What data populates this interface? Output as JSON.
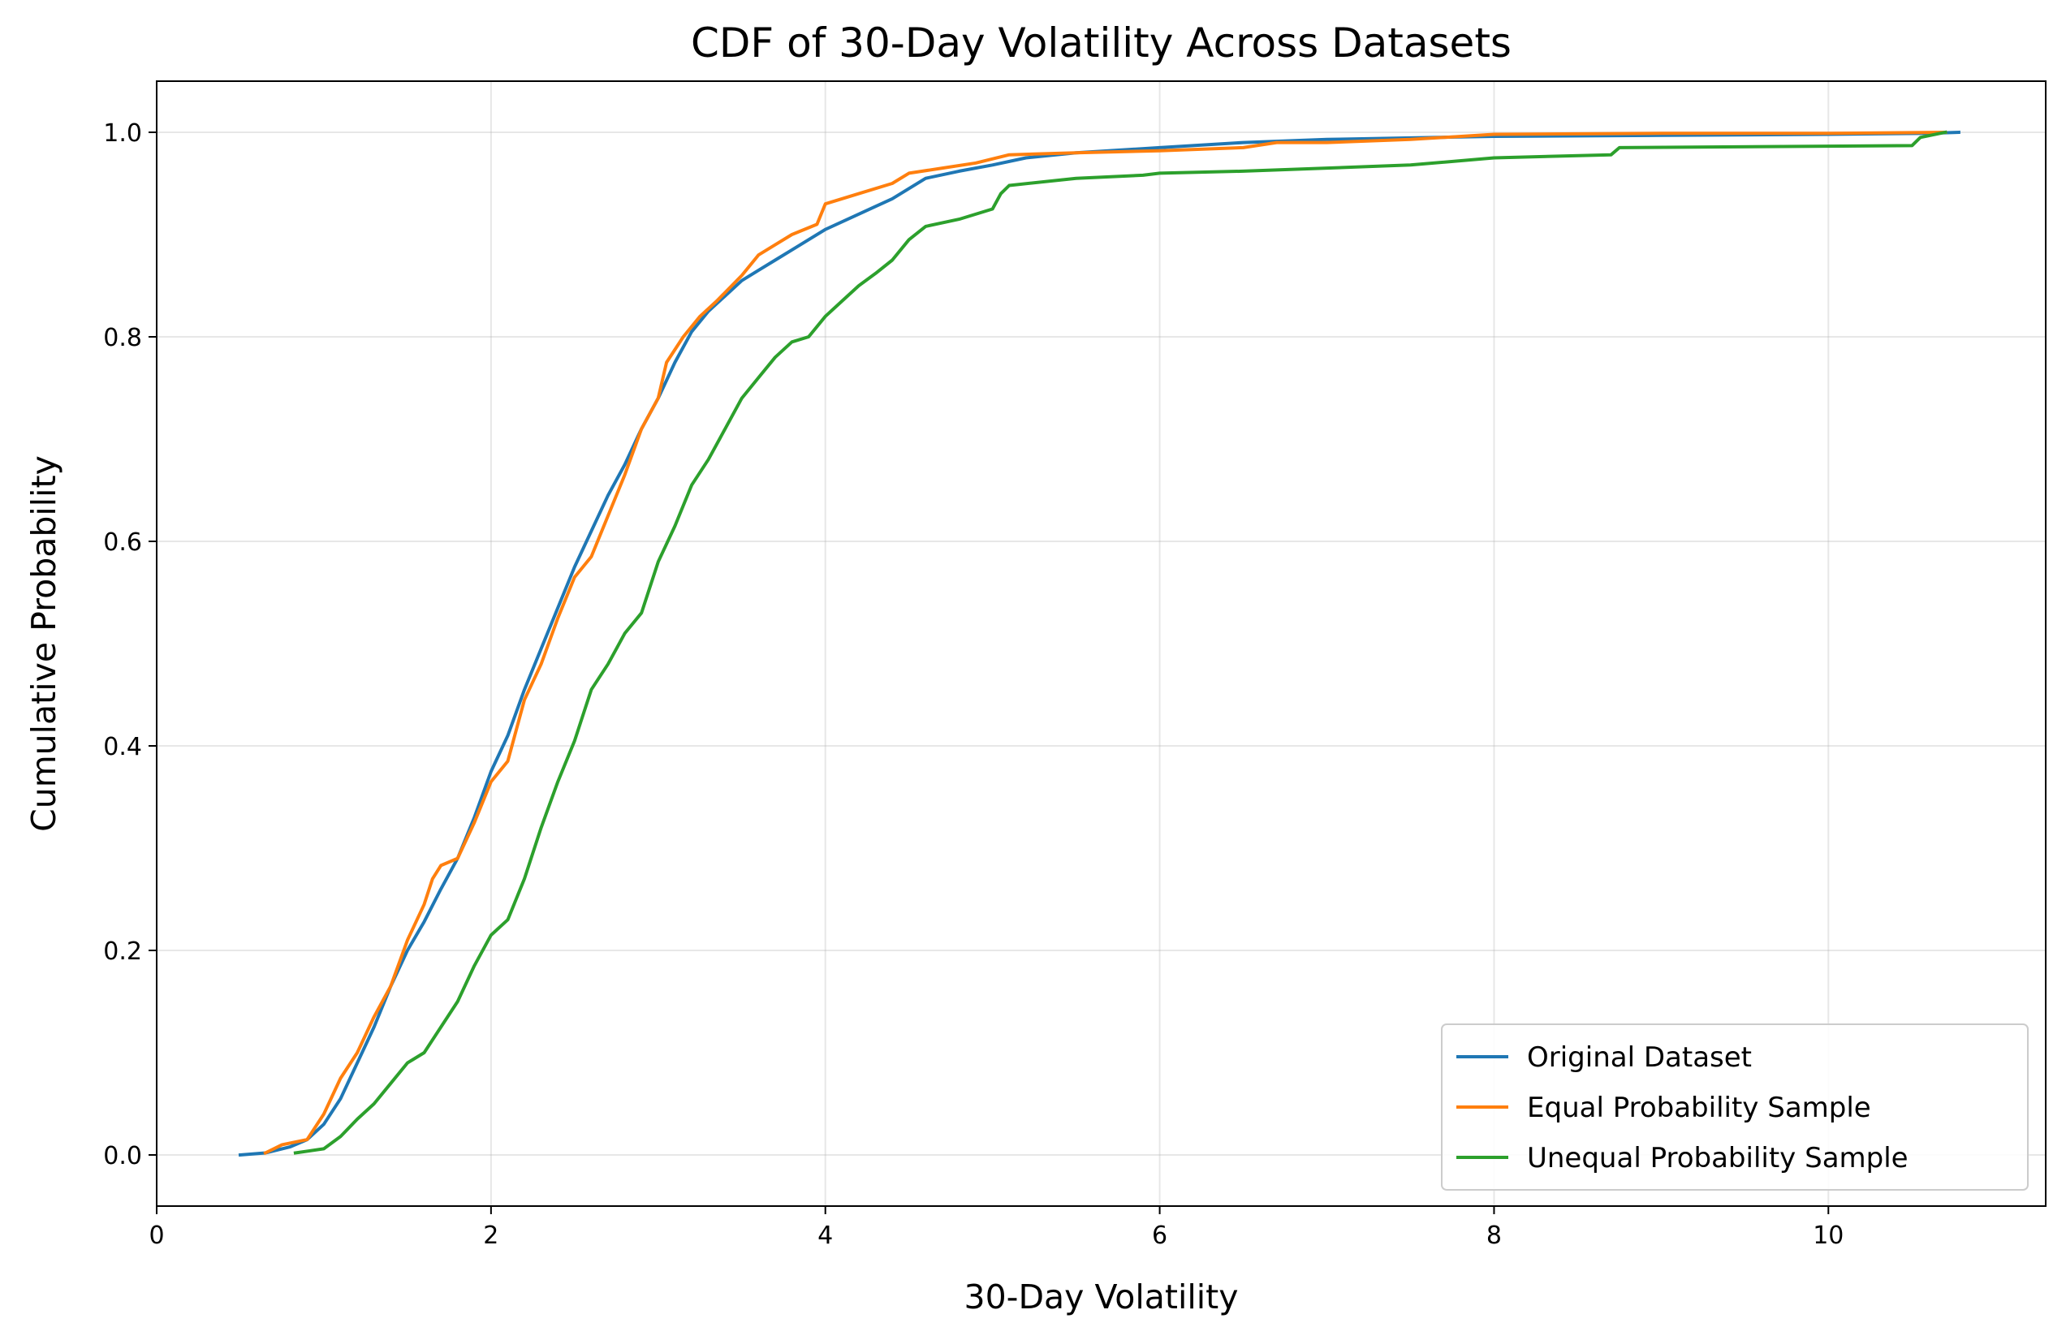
{
  "chart_data": {
    "type": "line",
    "title": "CDF of 30-Day Volatility Across Datasets",
    "xlabel": "30-Day Volatility",
    "ylabel": "Cumulative Probability",
    "xlim": [
      0,
      11.3
    ],
    "ylim": [
      -0.05,
      1.05
    ],
    "xticks": [
      0,
      2,
      4,
      6,
      8,
      10
    ],
    "yticks": [
      0.0,
      0.2,
      0.4,
      0.6,
      0.8,
      1.0
    ],
    "xtick_labels": [
      "0",
      "2",
      "4",
      "6",
      "8",
      "10"
    ],
    "ytick_labels": [
      "0.0",
      "0.2",
      "0.4",
      "0.6",
      "0.8",
      "1.0"
    ],
    "grid": true,
    "legend_position": "lower-right",
    "series": [
      {
        "name": "Original Dataset",
        "color": "#1f77b4",
        "points": [
          [
            0.5,
            0.0
          ],
          [
            0.65,
            0.002
          ],
          [
            0.8,
            0.008
          ],
          [
            0.9,
            0.015
          ],
          [
            1.0,
            0.03
          ],
          [
            1.1,
            0.055
          ],
          [
            1.2,
            0.09
          ],
          [
            1.3,
            0.125
          ],
          [
            1.4,
            0.165
          ],
          [
            1.5,
            0.2
          ],
          [
            1.6,
            0.228
          ],
          [
            1.7,
            0.26
          ],
          [
            1.8,
            0.29
          ],
          [
            1.9,
            0.33
          ],
          [
            2.0,
            0.375
          ],
          [
            2.1,
            0.41
          ],
          [
            2.2,
            0.455
          ],
          [
            2.3,
            0.495
          ],
          [
            2.4,
            0.535
          ],
          [
            2.5,
            0.575
          ],
          [
            2.6,
            0.61
          ],
          [
            2.7,
            0.645
          ],
          [
            2.8,
            0.675
          ],
          [
            2.9,
            0.71
          ],
          [
            3.0,
            0.74
          ],
          [
            3.1,
            0.775
          ],
          [
            3.2,
            0.805
          ],
          [
            3.3,
            0.825
          ],
          [
            3.4,
            0.84
          ],
          [
            3.5,
            0.855
          ],
          [
            3.6,
            0.865
          ],
          [
            3.7,
            0.875
          ],
          [
            3.8,
            0.885
          ],
          [
            3.9,
            0.895
          ],
          [
            4.0,
            0.905
          ],
          [
            4.2,
            0.92
          ],
          [
            4.4,
            0.935
          ],
          [
            4.6,
            0.955
          ],
          [
            4.8,
            0.962
          ],
          [
            5.0,
            0.968
          ],
          [
            5.2,
            0.975
          ],
          [
            5.5,
            0.98
          ],
          [
            6.0,
            0.985
          ],
          [
            6.5,
            0.99
          ],
          [
            7.0,
            0.993
          ],
          [
            8.0,
            0.996
          ],
          [
            9.0,
            0.997
          ],
          [
            10.0,
            0.998
          ],
          [
            10.6,
            0.999
          ],
          [
            10.78,
            1.0
          ]
        ]
      },
      {
        "name": "Equal Probability Sample",
        "color": "#ff7f0e",
        "points": [
          [
            0.65,
            0.002
          ],
          [
            0.75,
            0.01
          ],
          [
            0.9,
            0.015
          ],
          [
            1.0,
            0.04
          ],
          [
            1.1,
            0.075
          ],
          [
            1.2,
            0.1
          ],
          [
            1.3,
            0.135
          ],
          [
            1.4,
            0.165
          ],
          [
            1.5,
            0.21
          ],
          [
            1.6,
            0.245
          ],
          [
            1.65,
            0.27
          ],
          [
            1.7,
            0.283
          ],
          [
            1.8,
            0.29
          ],
          [
            1.9,
            0.325
          ],
          [
            2.0,
            0.365
          ],
          [
            2.1,
            0.385
          ],
          [
            2.2,
            0.445
          ],
          [
            2.3,
            0.48
          ],
          [
            2.4,
            0.525
          ],
          [
            2.5,
            0.565
          ],
          [
            2.6,
            0.585
          ],
          [
            2.7,
            0.625
          ],
          [
            2.8,
            0.665
          ],
          [
            2.9,
            0.71
          ],
          [
            3.0,
            0.74
          ],
          [
            3.05,
            0.775
          ],
          [
            3.15,
            0.8
          ],
          [
            3.25,
            0.82
          ],
          [
            3.35,
            0.835
          ],
          [
            3.5,
            0.86
          ],
          [
            3.6,
            0.88
          ],
          [
            3.7,
            0.89
          ],
          [
            3.8,
            0.9
          ],
          [
            3.95,
            0.91
          ],
          [
            4.0,
            0.93
          ],
          [
            4.2,
            0.94
          ],
          [
            4.4,
            0.95
          ],
          [
            4.5,
            0.96
          ],
          [
            4.7,
            0.965
          ],
          [
            4.9,
            0.97
          ],
          [
            5.1,
            0.978
          ],
          [
            5.5,
            0.98
          ],
          [
            6.0,
            0.982
          ],
          [
            6.5,
            0.985
          ],
          [
            6.7,
            0.99
          ],
          [
            7.0,
            0.99
          ],
          [
            7.5,
            0.993
          ],
          [
            8.0,
            0.998
          ],
          [
            9.0,
            0.999
          ],
          [
            10.0,
            0.999
          ],
          [
            10.7,
            1.0
          ]
        ]
      },
      {
        "name": "Unequal Probability Sample",
        "color": "#2ca02c",
        "points": [
          [
            0.83,
            0.002
          ],
          [
            1.0,
            0.006
          ],
          [
            1.1,
            0.018
          ],
          [
            1.2,
            0.035
          ],
          [
            1.3,
            0.05
          ],
          [
            1.4,
            0.07
          ],
          [
            1.5,
            0.09
          ],
          [
            1.6,
            0.1
          ],
          [
            1.7,
            0.125
          ],
          [
            1.8,
            0.15
          ],
          [
            1.9,
            0.185
          ],
          [
            2.0,
            0.215
          ],
          [
            2.1,
            0.23
          ],
          [
            2.2,
            0.27
          ],
          [
            2.3,
            0.32
          ],
          [
            2.4,
            0.365
          ],
          [
            2.5,
            0.405
          ],
          [
            2.6,
            0.455
          ],
          [
            2.7,
            0.48
          ],
          [
            2.8,
            0.51
          ],
          [
            2.9,
            0.53
          ],
          [
            3.0,
            0.58
          ],
          [
            3.1,
            0.615
          ],
          [
            3.2,
            0.655
          ],
          [
            3.3,
            0.68
          ],
          [
            3.4,
            0.71
          ],
          [
            3.5,
            0.74
          ],
          [
            3.6,
            0.76
          ],
          [
            3.7,
            0.78
          ],
          [
            3.8,
            0.795
          ],
          [
            3.9,
            0.8
          ],
          [
            4.0,
            0.82
          ],
          [
            4.1,
            0.835
          ],
          [
            4.2,
            0.85
          ],
          [
            4.3,
            0.862
          ],
          [
            4.4,
            0.875
          ],
          [
            4.5,
            0.895
          ],
          [
            4.6,
            0.908
          ],
          [
            4.8,
            0.915
          ],
          [
            5.0,
            0.925
          ],
          [
            5.05,
            0.94
          ],
          [
            5.1,
            0.948
          ],
          [
            5.5,
            0.955
          ],
          [
            5.9,
            0.958
          ],
          [
            6.0,
            0.96
          ],
          [
            6.5,
            0.962
          ],
          [
            7.0,
            0.965
          ],
          [
            7.5,
            0.968
          ],
          [
            8.0,
            0.975
          ],
          [
            8.7,
            0.978
          ],
          [
            8.75,
            0.985
          ],
          [
            10.5,
            0.987
          ],
          [
            10.55,
            0.995
          ],
          [
            10.7,
            1.0
          ]
        ]
      }
    ]
  }
}
